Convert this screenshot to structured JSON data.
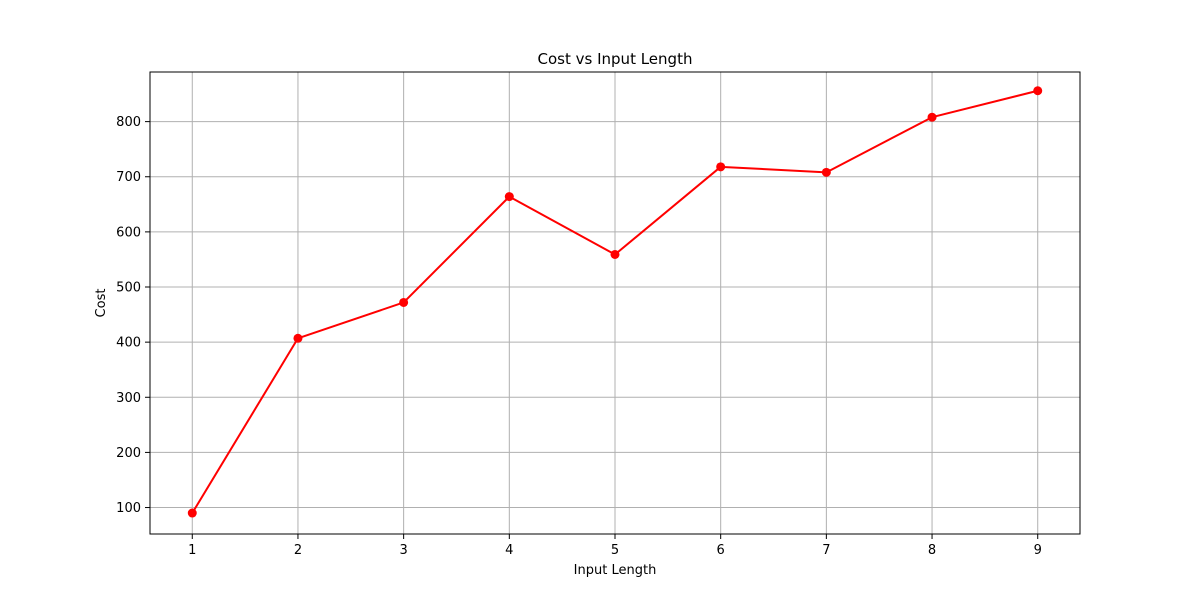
{
  "chart_data": {
    "type": "line",
    "title": "Cost vs Input Length",
    "xlabel": "Input Length",
    "ylabel": "Cost",
    "x": [
      1,
      2,
      3,
      4,
      5,
      6,
      7,
      8,
      9
    ],
    "series": [
      {
        "values": [
          90,
          407,
          472,
          664,
          559,
          718,
          708,
          808,
          856
        ],
        "color": "#ff0000",
        "marker": "circle"
      }
    ],
    "xlim": [
      0.6,
      9.4
    ],
    "ylim": [
      52,
      890
    ],
    "xticks": [
      1,
      2,
      3,
      4,
      5,
      6,
      7,
      8,
      9
    ],
    "yticks": [
      100,
      200,
      300,
      400,
      500,
      600,
      700,
      800
    ],
    "grid": true
  }
}
